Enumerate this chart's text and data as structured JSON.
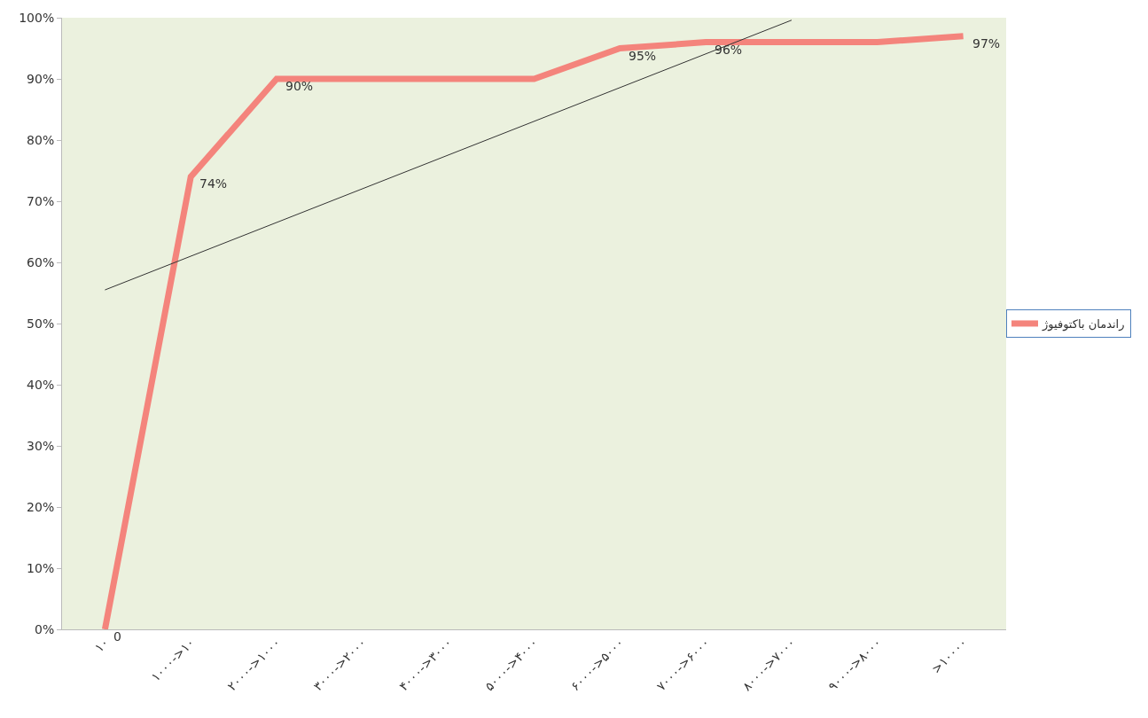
{
  "chart_data": {
    "type": "line",
    "categories": [
      "۱۰",
      "۱۰۰۰->۱۰",
      "۲۰۰۰->۱۰۰۰",
      "۳۰۰۰->۲۰۰۰",
      "۴۰۰۰->۳۰۰۰",
      "۵۰۰۰->۴۰۰۰",
      "۶۰۰۰->۵۰۰۰",
      "۷۰۰۰->۶۰۰۰",
      "۸۰۰۰->۷۰۰۰",
      "۹۰۰۰->۸۰۰۰",
      ">۱۰۰۰۰"
    ],
    "series": [
      {
        "name": "راندمان باکتوفیوژ",
        "color": "#f4847c",
        "values": [
          0,
          74,
          90,
          90,
          90,
          90,
          95,
          96,
          96,
          96,
          97
        ],
        "value_labels": [
          "0",
          "74%",
          "90%",
          null,
          null,
          null,
          "95%",
          "96%",
          null,
          null,
          "97%"
        ]
      },
      {
        "type": "line",
        "color": "#333333",
        "x": [
          "۱۰",
          "۸۰۰۰->۷۰۰۰"
        ],
        "values": [
          55.5,
          99.6
        ]
      }
    ],
    "ylim": [
      0,
      100
    ],
    "yticks": [
      {
        "value": 0,
        "label": "0%"
      },
      {
        "value": 10,
        "label": "10%"
      },
      {
        "value": 20,
        "label": "20%"
      },
      {
        "value": 30,
        "label": "30%"
      },
      {
        "value": 40,
        "label": "40%"
      },
      {
        "value": 50,
        "label": "50%"
      },
      {
        "value": 60,
        "label": "60%"
      },
      {
        "value": 70,
        "label": "70%"
      },
      {
        "value": 80,
        "label": "80%"
      },
      {
        "value": 90,
        "label": "90%"
      },
      {
        "value": 100,
        "label": "100%"
      }
    ],
    "grid": false,
    "legend": "right",
    "marker": "none"
  }
}
